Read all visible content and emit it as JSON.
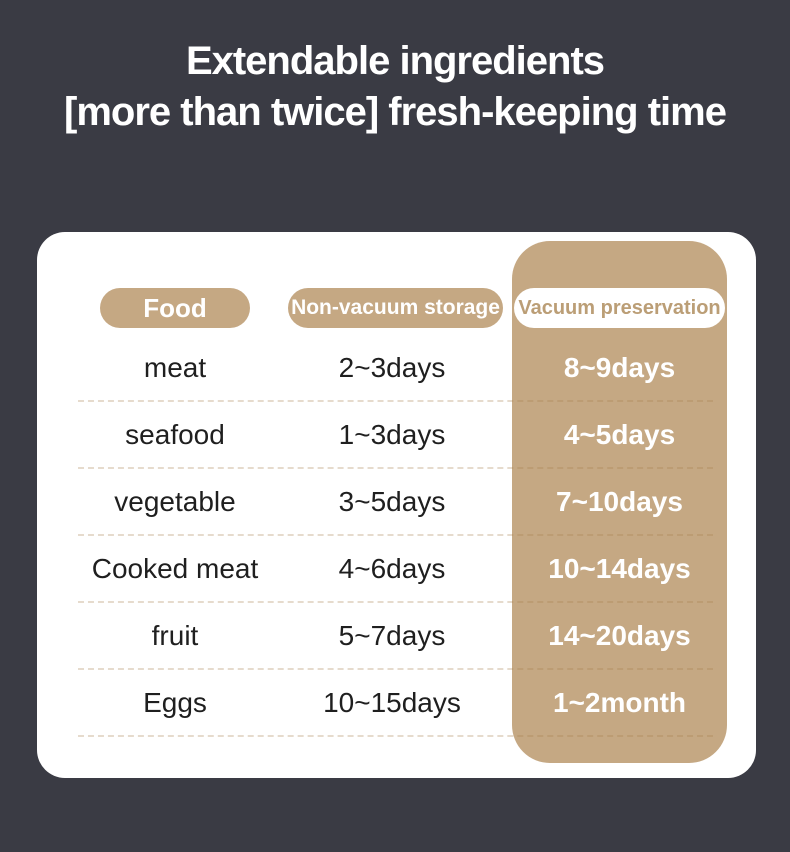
{
  "page": {
    "background_color": "#3a3b44",
    "accent_color": "#c5a883",
    "card_color": "#ffffff"
  },
  "title": {
    "line1": "Extendable ingredients",
    "line2": "[more than twice] fresh-keeping time"
  },
  "table": {
    "columns": [
      {
        "key": "food",
        "label": "Food"
      },
      {
        "key": "non_vacuum",
        "label": "Non-vacuum storage"
      },
      {
        "key": "vacuum",
        "label": "Vacuum preservation"
      }
    ],
    "rows": [
      {
        "food": "meat",
        "non_vacuum": "2~3days",
        "vacuum": "8~9days"
      },
      {
        "food": "seafood",
        "non_vacuum": "1~3days",
        "vacuum": "4~5days"
      },
      {
        "food": "vegetable",
        "non_vacuum": "3~5days",
        "vacuum": "7~10days"
      },
      {
        "food": "Cooked meat",
        "non_vacuum": "4~6days",
        "vacuum": "10~14days"
      },
      {
        "food": "fruit",
        "non_vacuum": "5~7days",
        "vacuum": "14~20days"
      },
      {
        "food": "Eggs",
        "non_vacuum": "10~15days",
        "vacuum": "1~2month"
      }
    ]
  },
  "chart_data": {
    "type": "table",
    "title": "Extendable ingredients [more than twice] fresh-keeping time",
    "columns": [
      "Food",
      "Non-vacuum storage",
      "Vacuum preservation"
    ],
    "rows": [
      [
        "meat",
        "2~3days",
        "8~9days"
      ],
      [
        "seafood",
        "1~3days",
        "4~5days"
      ],
      [
        "vegetable",
        "3~5days",
        "7~10days"
      ],
      [
        "Cooked meat",
        "4~6days",
        "10~14days"
      ],
      [
        "fruit",
        "5~7days",
        "14~20days"
      ],
      [
        "Eggs",
        "10~15days",
        "1~2month"
      ]
    ],
    "notes": "Vacuum preservation column highlighted in tan; values in bold white"
  }
}
